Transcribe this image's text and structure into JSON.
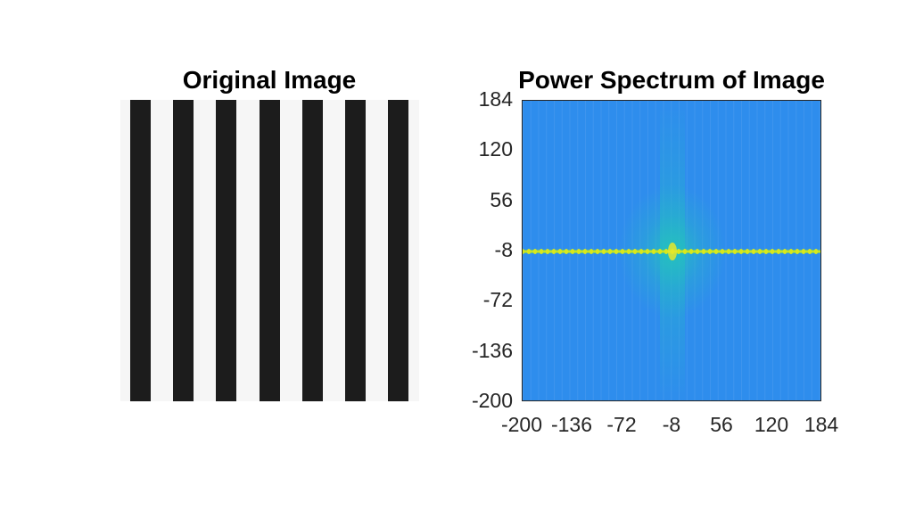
{
  "chart_data": [
    {
      "type": "image",
      "title": "Original Image",
      "stripes": 7,
      "stripe_color": "#1c1c1c",
      "background_color": "#f6f6f6"
    },
    {
      "type": "heatmap",
      "title": "Power Spectrum of Image",
      "xlabel": "",
      "ylabel": "",
      "xlim": [
        -200,
        184
      ],
      "ylim": [
        -200,
        184
      ],
      "x_ticks": [
        "-200",
        "-136",
        "-72",
        "-8",
        "56",
        "120",
        "184"
      ],
      "y_ticks": [
        "184",
        "120",
        "56",
        "-8",
        "-72",
        "-136",
        "-200"
      ],
      "colormap": "parula",
      "background_color": "#2e8ded",
      "peak_row_y": -8,
      "peak_row_color": "#d9e81c",
      "center_glow_color": "#23c9b6",
      "peak_spacing": 8
    }
  ]
}
